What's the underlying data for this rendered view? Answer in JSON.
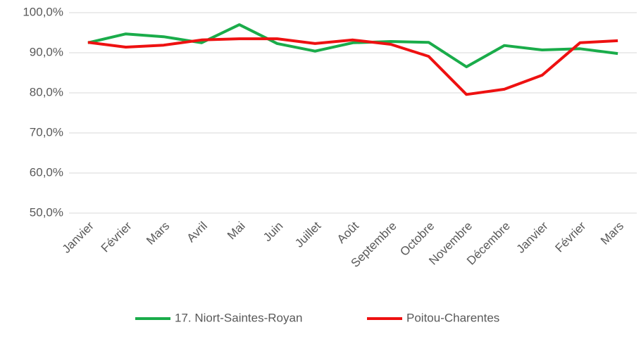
{
  "chart_data": {
    "type": "line",
    "categories": [
      "Janvier",
      "Février",
      "Mars",
      "Avril",
      "Mai",
      "Juin",
      "Juillet",
      "Août",
      "Septembre",
      "Octobre",
      "Novembre",
      "Décembre",
      "Janvier",
      "Février",
      "Mars"
    ],
    "series": [
      {
        "name": "17. Niort-Saintes-Royan",
        "color": "#1aac4a",
        "values": [
          92.5,
          94.7,
          94.0,
          92.5,
          97.0,
          92.3,
          90.4,
          92.5,
          92.8,
          92.6,
          86.5,
          91.8,
          90.7,
          91.0,
          89.8
        ]
      },
      {
        "name": "Poitou-Charentes",
        "color": "#ee1111",
        "values": [
          92.6,
          91.4,
          91.9,
          93.2,
          93.5,
          93.5,
          92.3,
          93.2,
          92.1,
          89.1,
          79.6,
          80.9,
          84.4,
          92.5,
          93.0
        ]
      }
    ],
    "ylim": [
      50,
      100
    ],
    "yticks": [
      {
        "value": 50,
        "label": "50,0%"
      },
      {
        "value": 60,
        "label": "60,0%"
      },
      {
        "value": 70,
        "label": "70,0%"
      },
      {
        "value": 80,
        "label": "80,0%"
      },
      {
        "value": 90,
        "label": "90,0%"
      },
      {
        "value": 100,
        "label": "100,0%"
      }
    ],
    "grid": true,
    "legend": "bottom"
  }
}
